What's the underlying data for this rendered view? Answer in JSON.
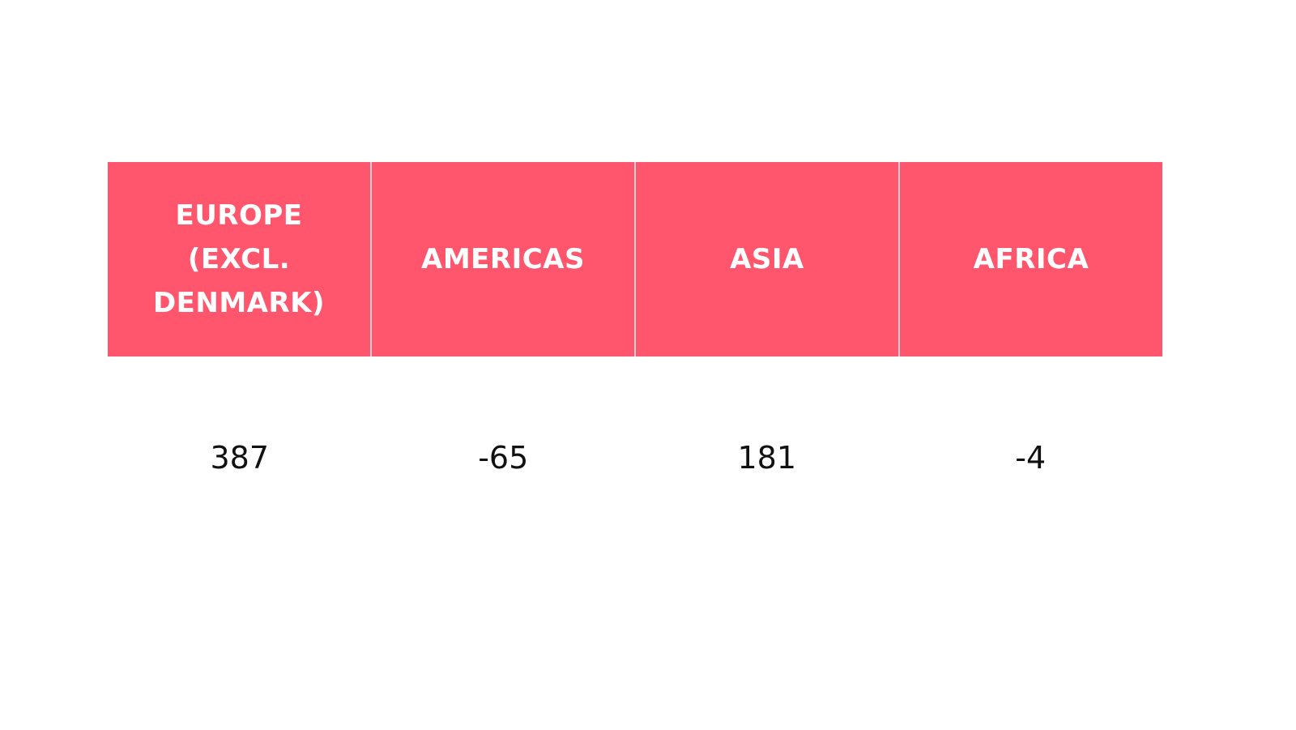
{
  "colors": {
    "header_bg": "#FF566E",
    "header_text": "#FFFFFF",
    "value_text": "#111111"
  },
  "chart_data": {
    "type": "table",
    "columns": [
      "EUROPE (EXCL. DENMARK)",
      "AMERICAS",
      "ASIA",
      "AFRICA"
    ],
    "rows": [
      [
        387,
        -65,
        181,
        -4
      ]
    ]
  }
}
